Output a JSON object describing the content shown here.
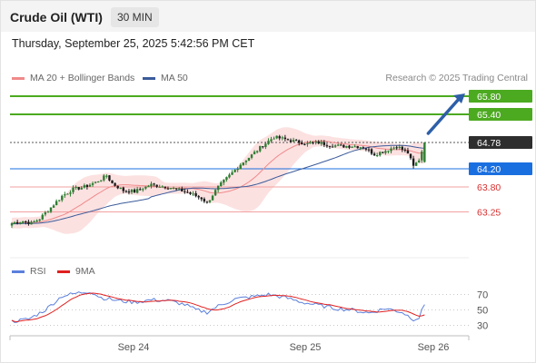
{
  "header": {
    "title": "Crude Oil (WTI)",
    "interval": "30 MIN"
  },
  "datetime": "Thursday, September 25, 2025 5:42:56 PM CET",
  "legend": {
    "ma20": "MA 20 + Bollinger Bands",
    "ma50": "MA 50",
    "credit": "Research © 2025 Trading Central",
    "ma20_color": "#f08a8a",
    "ma50_color": "#3b5b9a"
  },
  "rsi_legend": {
    "rsi": "RSI",
    "ma9": "9MA",
    "rsi_color": "#5b7fdc",
    "ma9_color": "#e02020"
  },
  "chart_data": [
    {
      "type": "candlestick",
      "title": "Crude Oil (WTI)",
      "interval": "30 MIN",
      "y_range": [
        62.6,
        66.0
      ],
      "x_ticks": [
        "Sep 24",
        "Sep 25",
        "Sep 26"
      ],
      "close_path": [
        {
          "i": 0,
          "v": 63.0
        },
        {
          "i": 4,
          "v": 63.05
        },
        {
          "i": 7,
          "v": 63.0
        },
        {
          "i": 10,
          "v": 63.1
        },
        {
          "i": 14,
          "v": 63.35
        },
        {
          "i": 18,
          "v": 63.6
        },
        {
          "i": 22,
          "v": 63.75
        },
        {
          "i": 26,
          "v": 63.8
        },
        {
          "i": 30,
          "v": 63.9
        },
        {
          "i": 34,
          "v": 64.05
        },
        {
          "i": 36,
          "v": 63.88
        },
        {
          "i": 40,
          "v": 63.72
        },
        {
          "i": 44,
          "v": 63.7
        },
        {
          "i": 50,
          "v": 63.85
        },
        {
          "i": 56,
          "v": 63.8
        },
        {
          "i": 62,
          "v": 63.7
        },
        {
          "i": 68,
          "v": 63.55
        },
        {
          "i": 70,
          "v": 63.45
        },
        {
          "i": 74,
          "v": 63.8
        },
        {
          "i": 78,
          "v": 64.05
        },
        {
          "i": 82,
          "v": 64.3
        },
        {
          "i": 86,
          "v": 64.5
        },
        {
          "i": 90,
          "v": 64.72
        },
        {
          "i": 94,
          "v": 64.9
        },
        {
          "i": 98,
          "v": 64.85
        },
        {
          "i": 102,
          "v": 64.8
        },
        {
          "i": 106,
          "v": 64.75
        },
        {
          "i": 110,
          "v": 64.78
        },
        {
          "i": 114,
          "v": 64.72
        },
        {
          "i": 118,
          "v": 64.7
        },
        {
          "i": 122,
          "v": 64.7
        },
        {
          "i": 126,
          "v": 64.68
        },
        {
          "i": 130,
          "v": 64.52
        },
        {
          "i": 134,
          "v": 64.6
        },
        {
          "i": 138,
          "v": 64.7
        },
        {
          "i": 142,
          "v": 64.55
        },
        {
          "i": 144,
          "v": 64.25
        },
        {
          "i": 146,
          "v": 64.4
        },
        {
          "i": 148,
          "v": 64.78
        }
      ],
      "levels": [
        {
          "value": 65.8,
          "label": "65.80",
          "kind": "target",
          "color": "#4caa20"
        },
        {
          "value": 65.4,
          "label": "65.40",
          "kind": "target",
          "color": "#4caa20"
        },
        {
          "value": 64.78,
          "label": "64.78",
          "kind": "last",
          "color": "#2e2e2e"
        },
        {
          "value": 64.2,
          "label": "64.20",
          "kind": "pivot",
          "color": "#1a6fe0"
        },
        {
          "value": 63.8,
          "label": "63.80",
          "kind": "support",
          "color": "#e55050"
        },
        {
          "value": 63.25,
          "label": "63.25",
          "kind": "support",
          "color": "#e55050"
        }
      ],
      "series": [
        {
          "name": "MA 20 + Bollinger Bands",
          "color": "#f08a8a"
        },
        {
          "name": "MA 50",
          "color": "#3b5b9a"
        }
      ]
    },
    {
      "type": "line",
      "title": "RSI",
      "y_range": [
        20,
        80
      ],
      "y_ticks": [
        70,
        50,
        30
      ],
      "rsi_path": [
        {
          "i": 0,
          "v": 35
        },
        {
          "i": 6,
          "v": 38
        },
        {
          "i": 12,
          "v": 50
        },
        {
          "i": 18,
          "v": 68
        },
        {
          "i": 24,
          "v": 72
        },
        {
          "i": 28,
          "v": 74
        },
        {
          "i": 32,
          "v": 66
        },
        {
          "i": 38,
          "v": 62
        },
        {
          "i": 44,
          "v": 60
        },
        {
          "i": 50,
          "v": 63
        },
        {
          "i": 56,
          "v": 62
        },
        {
          "i": 62,
          "v": 57
        },
        {
          "i": 66,
          "v": 50
        },
        {
          "i": 70,
          "v": 47
        },
        {
          "i": 74,
          "v": 55
        },
        {
          "i": 80,
          "v": 64
        },
        {
          "i": 86,
          "v": 67
        },
        {
          "i": 92,
          "v": 70
        },
        {
          "i": 98,
          "v": 66
        },
        {
          "i": 104,
          "v": 60
        },
        {
          "i": 110,
          "v": 56
        },
        {
          "i": 116,
          "v": 52
        },
        {
          "i": 122,
          "v": 50
        },
        {
          "i": 128,
          "v": 46
        },
        {
          "i": 134,
          "v": 52
        },
        {
          "i": 140,
          "v": 47
        },
        {
          "i": 144,
          "v": 38
        },
        {
          "i": 146,
          "v": 40
        },
        {
          "i": 148,
          "v": 57
        }
      ],
      "series": [
        {
          "name": "RSI",
          "color": "#5b7fdc"
        },
        {
          "name": "9MA",
          "color": "#e02020"
        }
      ]
    }
  ]
}
